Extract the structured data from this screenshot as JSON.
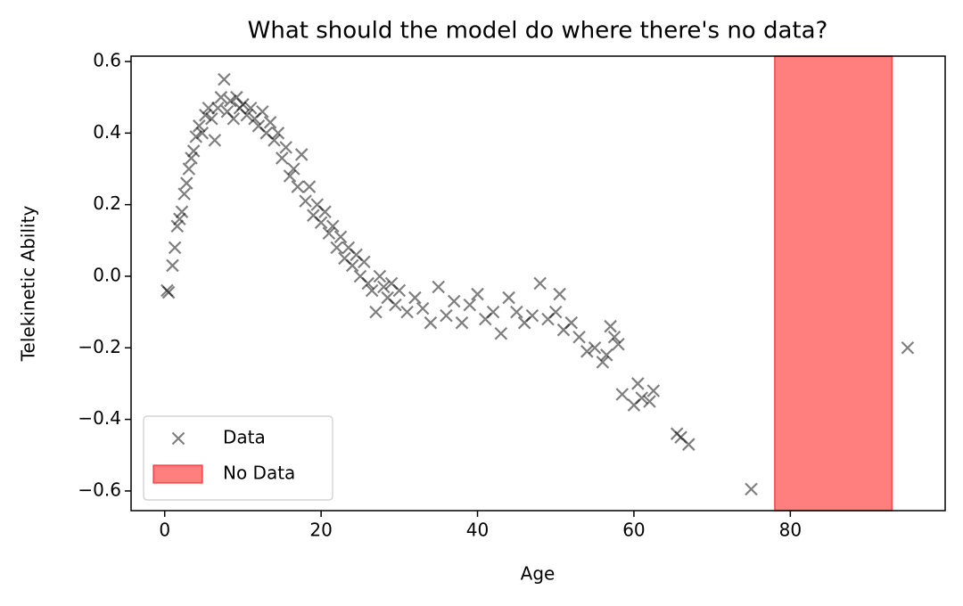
{
  "chart_data": {
    "type": "scatter",
    "title": "What should the model do where there's no data?",
    "x_label": "Age",
    "y_label": "Telekinetic Ability",
    "xlim": [
      -4.3,
      99.8
    ],
    "ylim": [
      -0.655,
      0.615
    ],
    "xticks": [
      0,
      20,
      40,
      60,
      80
    ],
    "yticks": [
      {
        "value": -0.6,
        "label": "−0.6"
      },
      {
        "value": -0.4,
        "label": "−0.4"
      },
      {
        "value": -0.2,
        "label": "−0.2"
      },
      {
        "value": 0,
        "label": "0.0"
      },
      0.2,
      0.4,
      0.6
    ],
    "legend": "lower left",
    "series": [
      {
        "name": "Data",
        "color": "#000000",
        "opacity": 0.5,
        "x": [
          0.3,
          0.5,
          1.0,
          1.3,
          1.6,
          1.9,
          2.2,
          2.5,
          2.8,
          3.1,
          3.4,
          3.7,
          4.0,
          4.4,
          4.8,
          5.2,
          5.6,
          6.0,
          6.4,
          6.8,
          7.2,
          7.6,
          8.0,
          8.4,
          8.8,
          9.2,
          9.6,
          10.0,
          10.5,
          11.0,
          11.5,
          12.0,
          12.5,
          13.0,
          13.5,
          14.0,
          14.5,
          15.0,
          15.5,
          16.0,
          16.5,
          17.0,
          17.5,
          18.0,
          18.5,
          19.0,
          19.5,
          20.0,
          20.5,
          21.0,
          21.5,
          22.0,
          22.5,
          23.0,
          23.5,
          24.0,
          24.5,
          25.0,
          25.5,
          26.0,
          26.5,
          27.0,
          27.5,
          28.0,
          28.5,
          29.0,
          29.5,
          30.0,
          31.0,
          32.0,
          33.0,
          34.0,
          35.0,
          36.0,
          37.0,
          38.0,
          39.0,
          40.0,
          41.0,
          42.0,
          43.0,
          44.0,
          45.0,
          46.0,
          47.0,
          48.0,
          49.0,
          50.0,
          50.5,
          51.0,
          52.0,
          53.0,
          54.0,
          55.0,
          56.0,
          56.5,
          57.0,
          57.5,
          58.0,
          58.5,
          60.0,
          60.5,
          61.0,
          62.0,
          62.5,
          65.5,
          66.0,
          67.0,
          75.0,
          95.0
        ],
        "values": [
          -0.04,
          -0.045,
          0.03,
          0.08,
          0.14,
          0.16,
          0.18,
          0.23,
          0.26,
          0.3,
          0.33,
          0.35,
          0.39,
          0.42,
          0.4,
          0.45,
          0.47,
          0.44,
          0.38,
          0.47,
          0.5,
          0.55,
          0.46,
          0.49,
          0.44,
          0.5,
          0.47,
          0.48,
          0.45,
          0.47,
          0.44,
          0.42,
          0.46,
          0.4,
          0.43,
          0.38,
          0.4,
          0.33,
          0.36,
          0.28,
          0.3,
          0.25,
          0.34,
          0.21,
          0.25,
          0.17,
          0.2,
          0.15,
          0.18,
          0.12,
          0.14,
          0.08,
          0.11,
          0.05,
          0.08,
          0.03,
          0.06,
          0.0,
          0.04,
          -0.02,
          -0.04,
          -0.1,
          0.0,
          -0.03,
          -0.06,
          -0.02,
          -0.08,
          -0.04,
          -0.1,
          -0.06,
          -0.09,
          -0.13,
          -0.03,
          -0.11,
          -0.07,
          -0.13,
          -0.08,
          -0.05,
          -0.12,
          -0.1,
          -0.16,
          -0.06,
          -0.1,
          -0.13,
          -0.11,
          -0.02,
          -0.12,
          -0.1,
          -0.05,
          -0.15,
          -0.13,
          -0.17,
          -0.21,
          -0.2,
          -0.24,
          -0.22,
          -0.14,
          -0.17,
          -0.19,
          -0.33,
          -0.36,
          -0.3,
          -0.34,
          -0.35,
          -0.32,
          -0.44,
          -0.45,
          -0.47,
          -0.595,
          -0.2
        ]
      }
    ],
    "shaded_regions": [
      {
        "name": "No Data",
        "x": [
          78,
          93
        ],
        "color": "#ff0000",
        "opacity": 0.5
      }
    ]
  }
}
